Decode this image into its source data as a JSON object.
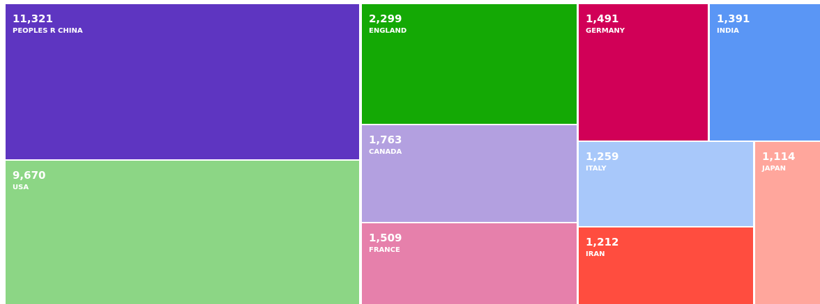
{
  "chart_data": {
    "type": "treemap",
    "categories": [
      "PEOPLES R CHINA",
      "USA",
      "ENGLAND",
      "CANADA",
      "FRANCE",
      "GERMANY",
      "INDIA",
      "ITALY",
      "IRAN",
      "JAPAN"
    ],
    "values": [
      11321,
      9670,
      2299,
      1763,
      1509,
      1491,
      1391,
      1259,
      1212,
      1114
    ],
    "value_labels": [
      "11,321",
      "9,670",
      "2,299",
      "1,763",
      "1,509",
      "1,491",
      "1,391",
      "1,259",
      "1,212",
      "1,114"
    ],
    "colors": [
      "#5e35c1",
      "#8cd685",
      "#14a905",
      "#b3a0e0",
      "#e680ab",
      "#d10057",
      "#5a96f5",
      "#a8c8fa",
      "#ff4d3f",
      "#ffa69c"
    ]
  }
}
